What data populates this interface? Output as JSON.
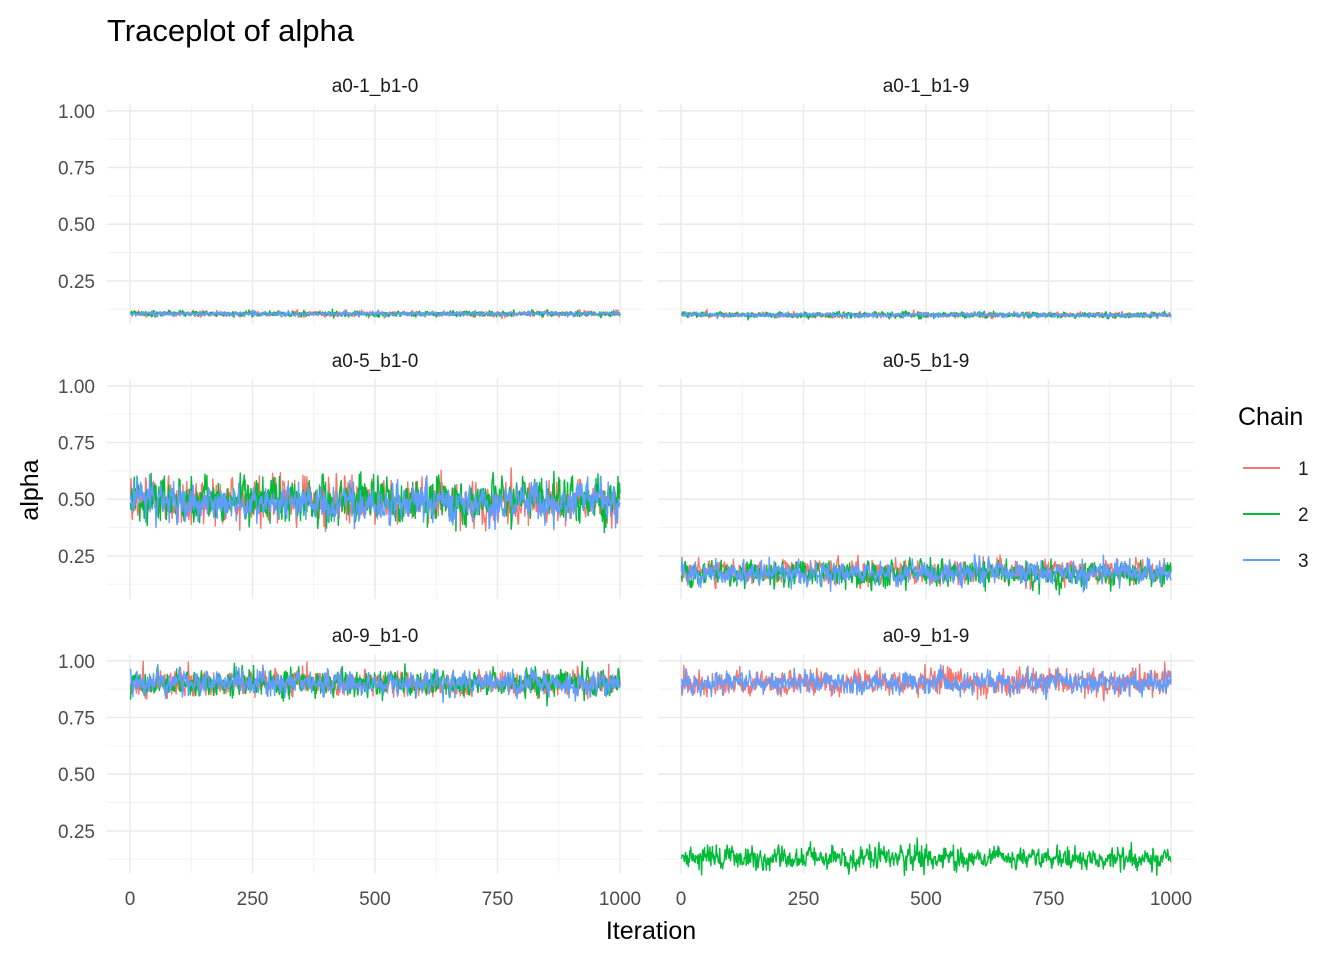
{
  "chart_data": {
    "type": "line",
    "title": "Traceplot of alpha",
    "xlabel": "Iteration",
    "ylabel": "alpha",
    "xlim": [
      0,
      1000
    ],
    "ylim": [
      0.06,
      1.03
    ],
    "x_ticks": [
      0,
      250,
      500,
      750,
      1000
    ],
    "x_tick_labels": [
      "0",
      "250",
      "500",
      "750",
      "1000"
    ],
    "y_ticks": [
      0.25,
      0.5,
      0.75,
      1.0
    ],
    "y_tick_labels": [
      "0.25",
      "0.50",
      "0.75",
      "1.00"
    ],
    "grid": true,
    "iterations": 1000,
    "legend": {
      "title": "Chain",
      "placement": "right",
      "entries": [
        {
          "label": "1",
          "color": "#F8766D"
        },
        {
          "label": "2",
          "color": "#00BA38"
        },
        {
          "label": "3",
          "color": "#619CFF"
        }
      ]
    },
    "panels": [
      {
        "label": "a0-1_b1-0",
        "series": [
          {
            "chain": "1",
            "mean": 0.105,
            "spread": 0.006
          },
          {
            "chain": "2",
            "mean": 0.105,
            "spread": 0.006
          },
          {
            "chain": "3",
            "mean": 0.105,
            "spread": 0.005
          }
        ]
      },
      {
        "label": "a0-1_b1-9",
        "series": [
          {
            "chain": "1",
            "mean": 0.1,
            "spread": 0.006
          },
          {
            "chain": "2",
            "mean": 0.1,
            "spread": 0.006
          },
          {
            "chain": "3",
            "mean": 0.1,
            "spread": 0.005
          }
        ]
      },
      {
        "label": "a0-5_b1-0",
        "series": [
          {
            "chain": "1",
            "mean": 0.49,
            "spread": 0.045
          },
          {
            "chain": "2",
            "mean": 0.5,
            "spread": 0.05
          },
          {
            "chain": "3",
            "mean": 0.49,
            "spread": 0.04
          }
        ]
      },
      {
        "label": "a0-5_b1-9",
        "series": [
          {
            "chain": "1",
            "mean": 0.18,
            "spread": 0.025
          },
          {
            "chain": "2",
            "mean": 0.17,
            "spread": 0.028
          },
          {
            "chain": "3",
            "mean": 0.175,
            "spread": 0.025
          }
        ]
      },
      {
        "label": "a0-9_b1-0",
        "series": [
          {
            "chain": "1",
            "mean": 0.9,
            "spread": 0.028
          },
          {
            "chain": "2",
            "mean": 0.9,
            "spread": 0.028
          },
          {
            "chain": "3",
            "mean": 0.9,
            "spread": 0.025
          }
        ]
      },
      {
        "label": "a0-9_b1-9",
        "series": [
          {
            "chain": "1",
            "mean": 0.905,
            "spread": 0.028
          },
          {
            "chain": "2",
            "mean": 0.13,
            "spread": 0.025
          },
          {
            "chain": "3",
            "mean": 0.905,
            "spread": 0.024
          }
        ]
      }
    ]
  }
}
